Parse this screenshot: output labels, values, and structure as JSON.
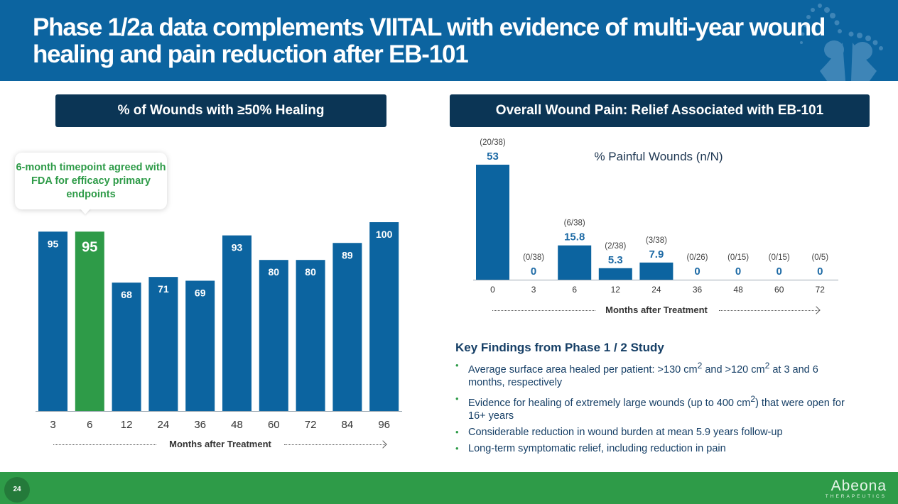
{
  "header": {
    "title": "Phase 1/2a data complements VIITAL with evidence of multi-year wound healing and pain reduction after EB-101"
  },
  "left_panel": {
    "title": "% of Wounds with ≥50% Healing",
    "callout": "6-month timepoint agreed with FDA for efficacy primary endpoints",
    "axis_label": "Months after Treatment"
  },
  "right_panel": {
    "title": "Overall Wound Pain: Relief Associated with EB-101",
    "chart_subtitle": "% Painful Wounds (n/N)",
    "axis_label": "Months after Treatment"
  },
  "colors": {
    "brand_blue": "#0c64a0",
    "navy": "#0b3555",
    "green": "#2e9b48"
  },
  "chart_data": [
    {
      "type": "bar",
      "title": "% of Wounds with ≥50% Healing",
      "xlabel": "Months after Treatment",
      "ylabel": "",
      "ylim": [
        0,
        100
      ],
      "grid": false,
      "categories": [
        "3",
        "6",
        "12",
        "24",
        "36",
        "48",
        "60",
        "72",
        "84",
        "96"
      ],
      "values": [
        95,
        95,
        68,
        71,
        69,
        93,
        80,
        80,
        89,
        100
      ],
      "highlight_index": 1,
      "bar_colors": [
        "#0c64a0",
        "#2e9b48",
        "#0c64a0",
        "#0c64a0",
        "#0c64a0",
        "#0c64a0",
        "#0c64a0",
        "#0c64a0",
        "#0c64a0",
        "#0c64a0"
      ]
    },
    {
      "type": "bar",
      "title": "% Painful Wounds (n/N)",
      "xlabel": "Months after Treatment",
      "ylabel": "",
      "ylim": [
        0,
        53
      ],
      "grid": false,
      "categories": [
        "0",
        "3",
        "6",
        "12",
        "24",
        "36",
        "48",
        "60",
        "72"
      ],
      "values": [
        53,
        0,
        15.8,
        5.3,
        7.9,
        0,
        0,
        0,
        0
      ],
      "value_labels": [
        "53",
        "0",
        "15.8",
        "5.3",
        "7.9",
        "0",
        "0",
        "0",
        "0"
      ],
      "counts": [
        "(20/38)",
        "(0/38)",
        "(6/38)",
        "(2/38)",
        "(3/38)",
        "(0/26)",
        "(0/15)",
        "(0/15)",
        "(0/5)"
      ]
    }
  ],
  "key_findings": {
    "title": "Key Findings from Phase 1 / 2 Study",
    "items": [
      {
        "before": "Average surface area healed per patient: >130 cm",
        "sup1": "2",
        "mid": " and >120 cm",
        "sup2": "2",
        "after": " at 3 and 6 months, respectively"
      },
      {
        "before": "Evidence for healing of extremely large wounds (up to 400 cm",
        "sup1": "2",
        "mid": ") that were open for 16+ years",
        "sup2": "",
        "after": ""
      },
      {
        "before": "Considerable reduction in wound burden at mean 5.9 years follow-up",
        "sup1": "",
        "mid": "",
        "sup2": "",
        "after": ""
      },
      {
        "before": "Long-term symptomatic relief, including reduction in pain",
        "sup1": "",
        "mid": "",
        "sup2": "",
        "after": ""
      }
    ]
  },
  "footer": {
    "page_number": "24",
    "logo_name": "Abeona",
    "logo_sub": "THERAPEUTICS"
  }
}
